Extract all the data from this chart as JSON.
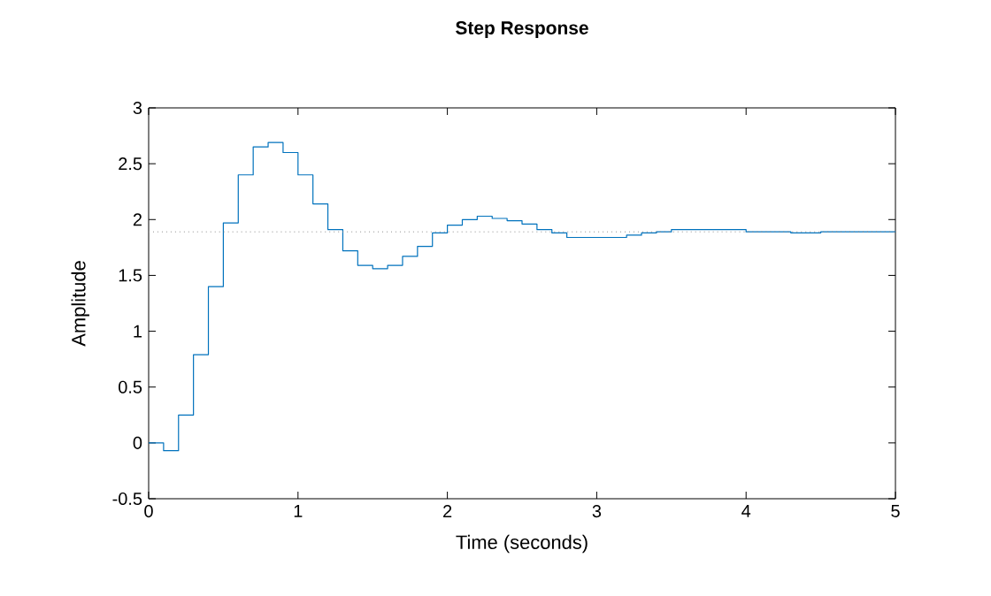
{
  "chart_data": {
    "type": "step",
    "title": "Step Response",
    "xlabel": "Time (seconds)",
    "ylabel": "Amplitude",
    "x": [
      0,
      0.1,
      0.2,
      0.3,
      0.4,
      0.5,
      0.6,
      0.7,
      0.8,
      0.9,
      1.0,
      1.1,
      1.2,
      1.3,
      1.4,
      1.5,
      1.6,
      1.7,
      1.8,
      1.9,
      2.0,
      2.1,
      2.2,
      2.3,
      2.4,
      2.5,
      2.6,
      2.7,
      2.8,
      2.9,
      3.0,
      3.1,
      3.2,
      3.3,
      3.4,
      3.5,
      3.6,
      3.7,
      3.8,
      3.9,
      4.0,
      4.1,
      4.2,
      4.3,
      4.4,
      4.5,
      4.6,
      4.7,
      4.8,
      4.9,
      5.0
    ],
    "series": [
      {
        "color": "#0072bd",
        "values": [
          0,
          -0.07,
          0.25,
          0.79,
          1.4,
          1.97,
          2.4,
          2.65,
          2.69,
          2.6,
          2.4,
          2.14,
          1.91,
          1.72,
          1.59,
          1.56,
          1.59,
          1.67,
          1.76,
          1.88,
          1.95,
          2.0,
          2.03,
          2.01,
          1.99,
          1.96,
          1.91,
          1.88,
          1.84,
          1.84,
          1.84,
          1.84,
          1.86,
          1.88,
          1.89,
          1.91,
          1.91,
          1.91,
          1.91,
          1.91,
          1.89,
          1.89,
          1.89,
          1.88,
          1.88,
          1.89,
          1.89,
          1.89,
          1.89,
          1.89,
          1.89
        ]
      }
    ],
    "xlim": [
      0,
      5
    ],
    "ylim": [
      -0.5,
      3
    ],
    "xticks": [
      0,
      1,
      2,
      3,
      4,
      5
    ],
    "yticks": [
      -0.5,
      0,
      0.5,
      1,
      1.5,
      2,
      2.5,
      3
    ],
    "ref_lines": [
      {
        "axis": "y",
        "value": 1.89,
        "color": "#8c8c8c",
        "line_style": "dotted"
      }
    ]
  }
}
